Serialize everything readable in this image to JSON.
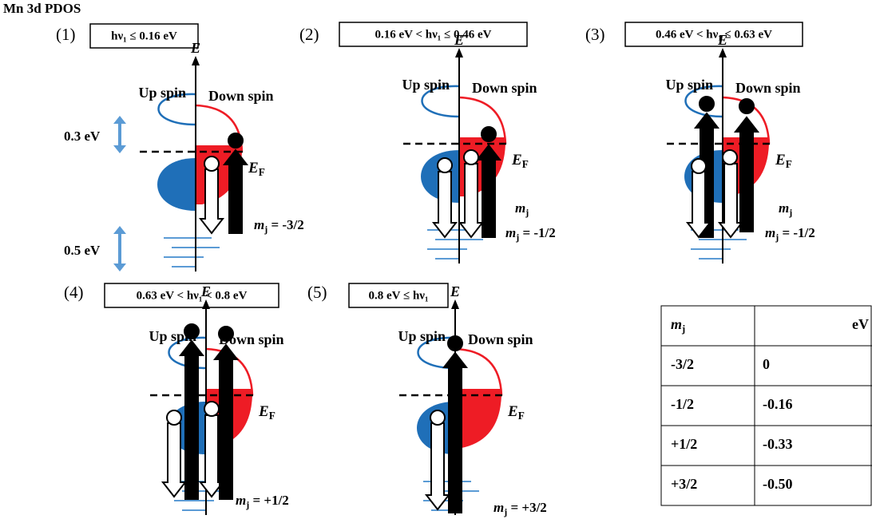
{
  "title": "Mn 3d PDOS",
  "panels": [
    {
      "number": "(1)",
      "condition": "hν₁ ≤ 0.16 eV",
      "axis_label": "E",
      "up_spin": "Up spin",
      "down_spin": "Down spin",
      "fermi": {
        "symbol": "E",
        "subscript": "F"
      },
      "mj": {
        "symbol": "m",
        "subscript": "j",
        "text": " = -3/2"
      },
      "energy_markers": [
        "0.3 eV",
        "0.5 eV"
      ]
    },
    {
      "number": "(2)",
      "condition": "0.16 eV < hν₁ ≤ 0.46 eV",
      "axis_label": "E",
      "up_spin": "Up spin",
      "down_spin": "Down spin",
      "fermi": {
        "symbol": "E",
        "subscript": "F"
      },
      "mj": {
        "symbol": "m",
        "subscript": "j",
        "text": " = -1/2"
      },
      "mj_extra": {
        "symbol": "m",
        "subscript": "j"
      }
    },
    {
      "number": "(3)",
      "condition": "0.46 eV < hν₁ ≤ 0.63 eV",
      "axis_label": "E",
      "up_spin": "Up spin",
      "down_spin": "Down spin",
      "fermi": {
        "symbol": "E",
        "subscript": "F"
      },
      "mj": {
        "symbol": "m",
        "subscript": "j",
        "text": " = -1/2"
      },
      "mj_extra": {
        "symbol": "m",
        "subscript": "j"
      }
    },
    {
      "number": "(4)",
      "condition": "0.63 eV < hν₁ < 0.8 eV",
      "axis_label": "E",
      "up_spin": "Up spin",
      "down_spin": "Down spin",
      "fermi": {
        "symbol": "E",
        "subscript": "F"
      },
      "mj": {
        "symbol": "m",
        "subscript": "j",
        "text": " = +1/2"
      }
    },
    {
      "number": "(5)",
      "condition": "0.8 eV ≤ hν₁",
      "axis_label": "E",
      "up_spin": "Up spin",
      "down_spin": "Down spin",
      "fermi": {
        "symbol": "E",
        "subscript": "F"
      },
      "mj": {
        "symbol": "m",
        "subscript": "j",
        "text": " = +3/2"
      }
    }
  ],
  "table": {
    "header": [
      {
        "symbol": "m",
        "subscript": "j"
      },
      "eV"
    ],
    "rows": [
      [
        "-3/2",
        "0"
      ],
      [
        "-1/2",
        "-0.16"
      ],
      [
        "+1/2",
        "-0.33"
      ],
      [
        "+3/2",
        "-0.50"
      ]
    ]
  }
}
